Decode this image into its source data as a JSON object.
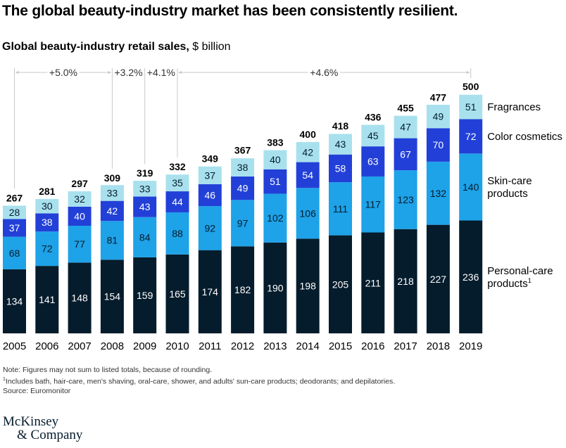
{
  "title": "The global beauty-industry market has been consistently resilient.",
  "subtitle_bold": "Global beauty-industry retail sales,",
  "subtitle_unit": " $ billion",
  "chart_data": {
    "type": "bar",
    "stacked": true,
    "title": "Global beauty-industry retail sales, $ billion",
    "xlabel": "",
    "ylabel": "$ billion",
    "categories": [
      "2005",
      "2006",
      "2007",
      "2008",
      "2009",
      "2010",
      "2011",
      "2012",
      "2013",
      "2014",
      "2015",
      "2016",
      "2017",
      "2018",
      "2019"
    ],
    "series": [
      {
        "name": "Personal-care products",
        "footnote": "1",
        "color": "#051c2c",
        "label_color": "#ffffff",
        "values": [
          134,
          141,
          148,
          154,
          159,
          165,
          174,
          182,
          190,
          198,
          205,
          211,
          218,
          227,
          236
        ]
      },
      {
        "name": "Skin-care products",
        "color": "#1ea2e8",
        "label_color": "#051c2c",
        "values": [
          68,
          72,
          77,
          81,
          84,
          88,
          92,
          97,
          102,
          106,
          111,
          117,
          123,
          132,
          140
        ]
      },
      {
        "name": "Color cosmetics",
        "color": "#2240d8",
        "label_color": "#ffffff",
        "values": [
          37,
          38,
          40,
          42,
          43,
          44,
          46,
          49,
          51,
          54,
          58,
          63,
          67,
          70,
          72
        ]
      },
      {
        "name": "Fragrances",
        "color": "#a8e1ed",
        "label_color": "#051c2c",
        "values": [
          28,
          30,
          32,
          33,
          33,
          35,
          37,
          38,
          40,
          42,
          43,
          45,
          47,
          49,
          51
        ]
      }
    ],
    "totals": [
      267,
      281,
      297,
      309,
      319,
      332,
      349,
      367,
      383,
      400,
      418,
      436,
      455,
      477,
      500
    ],
    "ylim": [
      0,
      500
    ],
    "grid": false,
    "legend": "right (inline labels)",
    "growth_annotations": [
      {
        "label": "+5.0%",
        "from": "2005",
        "to": "2008"
      },
      {
        "label": "+3.2%",
        "from": "2008",
        "to": "2009"
      },
      {
        "label": "+4.1%",
        "from": "2009",
        "to": "2010"
      },
      {
        "label": "+4.6%",
        "from": "2010",
        "to": "2019"
      }
    ]
  },
  "notes": {
    "note": "Note: Figures may not sum to listed totals, because of rounding.",
    "footnote_marker": "1",
    "footnote": "Includes bath, hair-care, men's shaving, oral-care, shower, and adults' sun-care products; deodorants; and depilatories.",
    "source": "Source: Euromonitor"
  },
  "logo": {
    "line1": "McKinsey",
    "line2": "& Company"
  }
}
